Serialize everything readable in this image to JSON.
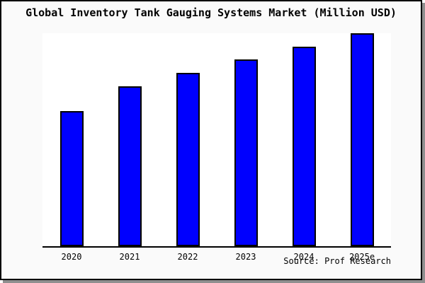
{
  "title": "Global Inventory Tank Gauging Systems Market (Million USD)",
  "source": {
    "label": "Source: Prof Research"
  },
  "colors": {
    "bar_fill": "#0000fe",
    "bar_edge": "#000000",
    "panel_background": "#fafafa",
    "plot_background": "#ffffff",
    "frame_border": "#000000",
    "frame_shadow": "#8f8f8f"
  },
  "chart_data": {
    "type": "bar",
    "title": "Global Inventory Tank Gauging Systems Market (Million USD)",
    "categories": [
      "2020",
      "2021",
      "2022",
      "2023",
      "2024",
      "2025e"
    ],
    "values": [
      63.4,
      75.0,
      81.3,
      87.5,
      93.7,
      100.0
    ],
    "value_units": "percent of 2025e bar height (estimated; y-axis not labeled in image)",
    "xlabel": "",
    "ylabel": "",
    "ylim": [
      0,
      100.7
    ],
    "yaxis_visible": false,
    "gridlines": false,
    "legend_position": "none",
    "source_note": "Source: Prof Research",
    "bar_color": "#0000fe",
    "bar_edge_color": "#000000"
  }
}
